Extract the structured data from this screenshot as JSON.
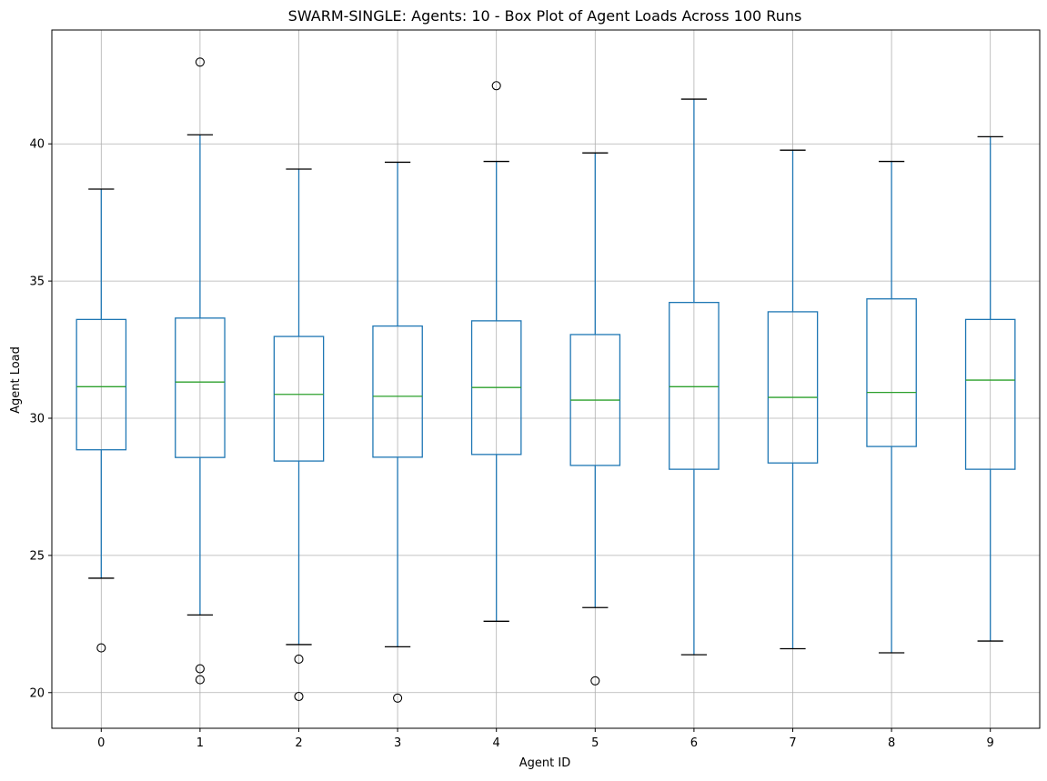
{
  "chart_data": {
    "type": "box",
    "title": "SWARM-SINGLE: Agents: 10 - Box Plot of Agent Loads Across 100 Runs",
    "xlabel": "Agent ID",
    "ylabel": "Agent Load",
    "categories": [
      "0",
      "1",
      "2",
      "3",
      "4",
      "5",
      "6",
      "7",
      "8",
      "9"
    ],
    "yticks": [
      20,
      25,
      30,
      35,
      40
    ],
    "ylim": [
      18.7,
      44.15
    ],
    "grid": true,
    "colors": {
      "box": "#1f77b4",
      "median": "#2ca02c",
      "cap": "#000000",
      "outlier": "#000000",
      "grid": "#b0b0b0"
    },
    "boxes": [
      {
        "q1": 28.85,
        "median": 31.15,
        "q3": 33.6,
        "whisker_low": 24.17,
        "whisker_high": 38.35,
        "outliers": [
          21.63
        ]
      },
      {
        "q1": 28.57,
        "median": 31.32,
        "q3": 33.65,
        "whisker_low": 22.83,
        "whisker_high": 40.33,
        "outliers": [
          42.98,
          20.87,
          20.47
        ]
      },
      {
        "q1": 28.44,
        "median": 30.87,
        "q3": 32.98,
        "whisker_low": 21.75,
        "whisker_high": 39.08,
        "outliers": [
          21.22,
          19.86
        ]
      },
      {
        "q1": 28.58,
        "median": 30.8,
        "q3": 33.36,
        "whisker_low": 21.67,
        "whisker_high": 39.33,
        "outliers": [
          19.8
        ]
      },
      {
        "q1": 28.68,
        "median": 31.12,
        "q3": 33.55,
        "whisker_low": 22.6,
        "whisker_high": 39.36,
        "outliers": [
          42.12
        ]
      },
      {
        "q1": 28.28,
        "median": 30.66,
        "q3": 33.05,
        "whisker_low": 23.1,
        "whisker_high": 39.67,
        "outliers": [
          20.43
        ]
      },
      {
        "q1": 28.14,
        "median": 31.15,
        "q3": 34.22,
        "whisker_low": 21.38,
        "whisker_high": 41.63,
        "outliers": []
      },
      {
        "q1": 28.37,
        "median": 30.76,
        "q3": 33.88,
        "whisker_low": 21.6,
        "whisker_high": 39.77,
        "outliers": []
      },
      {
        "q1": 28.97,
        "median": 30.94,
        "q3": 34.35,
        "whisker_low": 21.45,
        "whisker_high": 39.36,
        "outliers": []
      },
      {
        "q1": 28.14,
        "median": 31.39,
        "q3": 33.6,
        "whisker_low": 21.88,
        "whisker_high": 40.26,
        "outliers": []
      }
    ]
  }
}
